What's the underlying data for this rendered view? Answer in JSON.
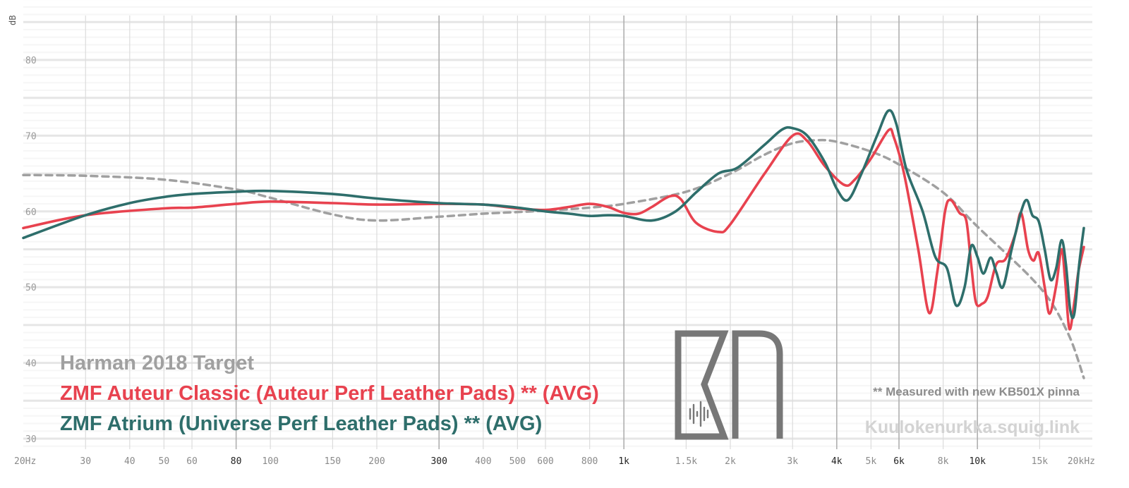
{
  "chart_data": {
    "type": "line",
    "ylabel": "dB",
    "x_scale": "log",
    "xlim": [
      20,
      20000
    ],
    "ylim": [
      29,
      89
    ],
    "x_ticks": [
      {
        "value": 20,
        "label": "20Hz",
        "major": false
      },
      {
        "value": 30,
        "label": "30",
        "major": false
      },
      {
        "value": 40,
        "label": "40",
        "major": false
      },
      {
        "value": 50,
        "label": "50",
        "major": false
      },
      {
        "value": 60,
        "label": "60",
        "major": false
      },
      {
        "value": 80,
        "label": "80",
        "major": true
      },
      {
        "value": 100,
        "label": "100",
        "major": false
      },
      {
        "value": 150,
        "label": "150",
        "major": false
      },
      {
        "value": 200,
        "label": "200",
        "major": false
      },
      {
        "value": 300,
        "label": "300",
        "major": true
      },
      {
        "value": 400,
        "label": "400",
        "major": false
      },
      {
        "value": 500,
        "label": "500",
        "major": false
      },
      {
        "value": 600,
        "label": "600",
        "major": false
      },
      {
        "value": 800,
        "label": "800",
        "major": false
      },
      {
        "value": 1000,
        "label": "1k",
        "major": true
      },
      {
        "value": 1500,
        "label": "1.5k",
        "major": false
      },
      {
        "value": 2000,
        "label": "2k",
        "major": false
      },
      {
        "value": 3000,
        "label": "3k",
        "major": false
      },
      {
        "value": 4000,
        "label": "4k",
        "major": true
      },
      {
        "value": 5000,
        "label": "5k",
        "major": false
      },
      {
        "value": 6000,
        "label": "6k",
        "major": true
      },
      {
        "value": 8000,
        "label": "8k",
        "major": false
      },
      {
        "value": 10000,
        "label": "10k",
        "major": true
      },
      {
        "value": 15000,
        "label": "15k",
        "major": false
      },
      {
        "value": 20000,
        "label": "20kHz",
        "major": false
      }
    ],
    "y_ticks": [
      {
        "value": 80,
        "label": "80"
      },
      {
        "value": 70,
        "label": "70"
      },
      {
        "value": 60,
        "label": "60"
      },
      {
        "value": 50,
        "label": "50"
      },
      {
        "value": 40,
        "label": "40"
      },
      {
        "value": 30,
        "label": "30"
      }
    ],
    "series": [
      {
        "name": "Harman 2018 Target",
        "color": "#a0a0a0",
        "dashed": true,
        "points": [
          [
            20,
            64.8
          ],
          [
            30,
            64.7
          ],
          [
            50,
            64.2
          ],
          [
            80,
            62.9
          ],
          [
            100,
            61.8
          ],
          [
            150,
            59.6
          ],
          [
            200,
            58.8
          ],
          [
            300,
            59.3
          ],
          [
            400,
            59.7
          ],
          [
            600,
            60.1
          ],
          [
            800,
            60.5
          ],
          [
            1000,
            61.0
          ],
          [
            1500,
            62.6
          ],
          [
            2000,
            65.0
          ],
          [
            2500,
            67.5
          ],
          [
            3000,
            69.0
          ],
          [
            3500,
            69.4
          ],
          [
            4000,
            69.2
          ],
          [
            5000,
            67.9
          ],
          [
            6000,
            66.2
          ],
          [
            8000,
            62.5
          ],
          [
            10000,
            58.0
          ],
          [
            15000,
            50.0
          ],
          [
            18000,
            44.0
          ],
          [
            20000,
            38.0
          ]
        ]
      },
      {
        "name": "ZMF Auteur Classic (Auteur Perf Leather Pads) ** (AVG)",
        "color": "#e8424f",
        "dashed": false,
        "points": [
          [
            20,
            57.8
          ],
          [
            30,
            59.5
          ],
          [
            50,
            60.4
          ],
          [
            60,
            60.5
          ],
          [
            80,
            61.0
          ],
          [
            100,
            61.3
          ],
          [
            150,
            61.1
          ],
          [
            200,
            60.9
          ],
          [
            300,
            61.0
          ],
          [
            400,
            60.9
          ],
          [
            500,
            60.4
          ],
          [
            600,
            60.2
          ],
          [
            700,
            60.6
          ],
          [
            800,
            61.0
          ],
          [
            900,
            60.6
          ],
          [
            1000,
            59.8
          ],
          [
            1100,
            59.7
          ],
          [
            1200,
            60.6
          ],
          [
            1350,
            62.0
          ],
          [
            1450,
            61.6
          ],
          [
            1600,
            58.5
          ],
          [
            1850,
            57.3
          ],
          [
            2000,
            58.3
          ],
          [
            2500,
            65.0
          ],
          [
            3000,
            70.0
          ],
          [
            3300,
            69.3
          ],
          [
            3700,
            66.0
          ],
          [
            4200,
            63.5
          ],
          [
            4500,
            64.2
          ],
          [
            5000,
            67.0
          ],
          [
            5600,
            70.7
          ],
          [
            5800,
            69.8
          ],
          [
            6200,
            65.0
          ],
          [
            6800,
            55.0
          ],
          [
            7300,
            46.6
          ],
          [
            7700,
            52.0
          ],
          [
            8100,
            60.0
          ],
          [
            8400,
            61.5
          ],
          [
            8900,
            59.8
          ],
          [
            9300,
            58.8
          ],
          [
            9600,
            53.0
          ],
          [
            9900,
            48.0
          ],
          [
            10300,
            47.8
          ],
          [
            10700,
            48.8
          ],
          [
            11300,
            53.0
          ],
          [
            12000,
            53.7
          ],
          [
            12800,
            57.0
          ],
          [
            13300,
            59.8
          ],
          [
            13900,
            55.0
          ],
          [
            14400,
            53.5
          ],
          [
            14900,
            54.5
          ],
          [
            15500,
            50.0
          ],
          [
            16000,
            46.5
          ],
          [
            16700,
            50.2
          ],
          [
            17300,
            55.0
          ],
          [
            17700,
            51.0
          ],
          [
            18200,
            44.5
          ],
          [
            18800,
            48.0
          ],
          [
            19300,
            52.0
          ],
          [
            20000,
            55.3
          ]
        ]
      },
      {
        "name": "ZMF Atrium (Universe Perf Leather Pads) ** (AVG)",
        "color": "#2e6e6b",
        "dashed": false,
        "points": [
          [
            20,
            56.5
          ],
          [
            30,
            59.5
          ],
          [
            40,
            61.1
          ],
          [
            50,
            61.9
          ],
          [
            60,
            62.3
          ],
          [
            80,
            62.6
          ],
          [
            100,
            62.7
          ],
          [
            150,
            62.3
          ],
          [
            200,
            61.7
          ],
          [
            300,
            61.1
          ],
          [
            400,
            60.9
          ],
          [
            500,
            60.5
          ],
          [
            600,
            60.0
          ],
          [
            700,
            59.7
          ],
          [
            800,
            59.4
          ],
          [
            900,
            59.5
          ],
          [
            1000,
            59.4
          ],
          [
            1200,
            58.8
          ],
          [
            1400,
            60.0
          ],
          [
            1600,
            62.5
          ],
          [
            1850,
            65.0
          ],
          [
            2100,
            65.8
          ],
          [
            2500,
            68.8
          ],
          [
            2800,
            70.8
          ],
          [
            3000,
            71.0
          ],
          [
            3300,
            70.0
          ],
          [
            3700,
            66.5
          ],
          [
            4000,
            63.0
          ],
          [
            4300,
            61.5
          ],
          [
            4700,
            65.0
          ],
          [
            5200,
            70.0
          ],
          [
            5600,
            73.3
          ],
          [
            5900,
            71.5
          ],
          [
            6300,
            65.5
          ],
          [
            7000,
            60.0
          ],
          [
            7600,
            54.0
          ],
          [
            8200,
            52.5
          ],
          [
            8700,
            47.6
          ],
          [
            9200,
            50.0
          ],
          [
            9600,
            55.4
          ],
          [
            10000,
            54.0
          ],
          [
            10400,
            51.8
          ],
          [
            10900,
            53.9
          ],
          [
            11300,
            52.0
          ],
          [
            11800,
            50.0
          ],
          [
            12500,
            55.0
          ],
          [
            13300,
            60.0
          ],
          [
            13800,
            61.5
          ],
          [
            14300,
            59.5
          ],
          [
            14900,
            58.7
          ],
          [
            15500,
            55.0
          ],
          [
            16100,
            51.0
          ],
          [
            16700,
            52.5
          ],
          [
            17300,
            56.2
          ],
          [
            17800,
            53.0
          ],
          [
            18300,
            47.0
          ],
          [
            18800,
            46.5
          ],
          [
            19400,
            53.0
          ],
          [
            20000,
            57.8
          ]
        ]
      }
    ]
  },
  "legend": {
    "target": {
      "label": "Harman 2018 Target",
      "color": "#a0a0a0"
    },
    "auteur": {
      "label": "ZMF Auteur Classic (Auteur Perf Leather Pads) ** (AVG)",
      "color": "#e8424f"
    },
    "atrium": {
      "label": "ZMF Atrium (Universe Perf Leather Pads) ** (AVG)",
      "color": "#2e6e6b"
    }
  },
  "note": "** Measured with new KB501X pinna",
  "site": "Kuulokenurkka.squig.link",
  "logo": {
    "text": "KN",
    "color": "#777777"
  }
}
